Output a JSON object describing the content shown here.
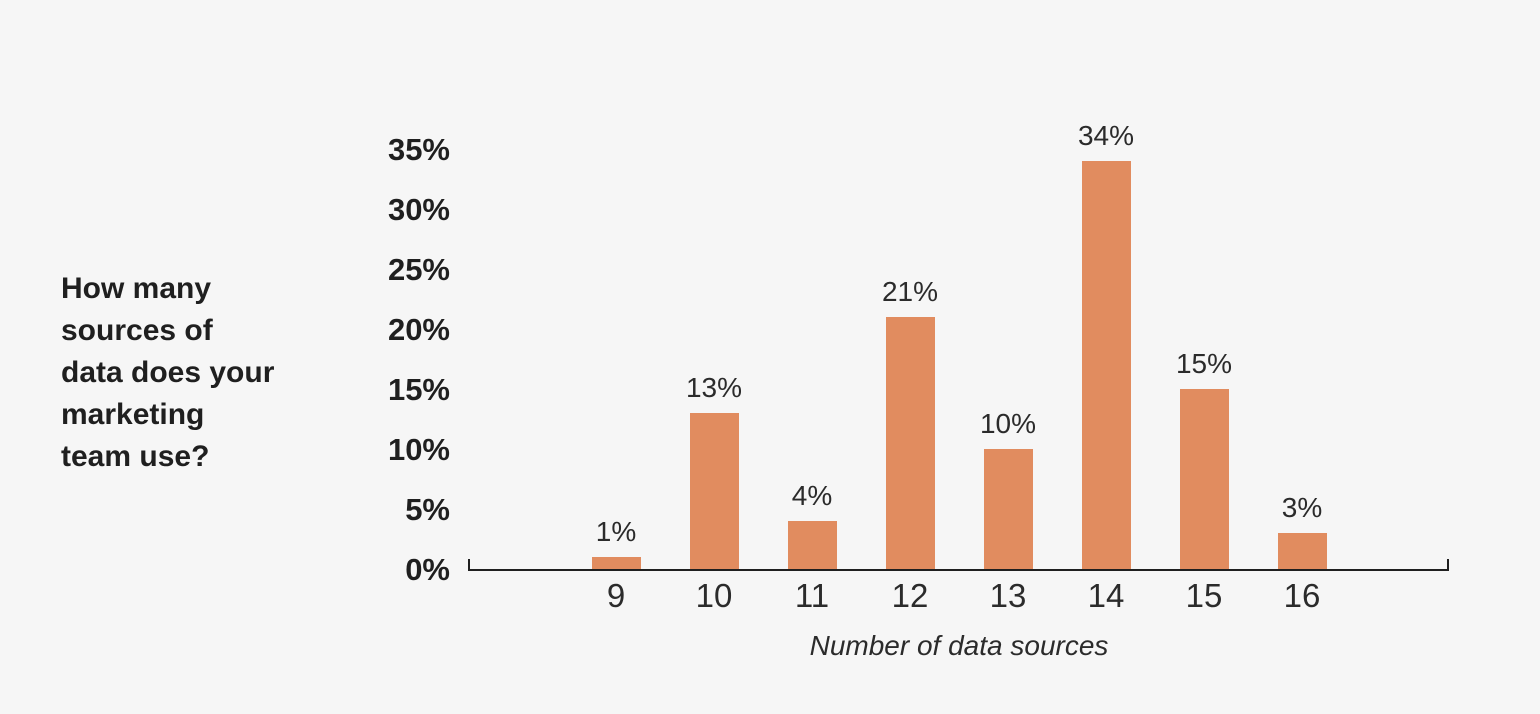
{
  "question": {
    "text": "How many sources of data does your marketing team use?",
    "lines": [
      "How many",
      "sources of",
      "data does your",
      "marketing",
      "team use?"
    ]
  },
  "chart_data": {
    "type": "bar",
    "title": "How many sources of data does your marketing team use?",
    "categories": [
      "9",
      "10",
      "11",
      "12",
      "13",
      "14",
      "15",
      "16"
    ],
    "values": [
      1,
      13,
      4,
      21,
      10,
      34,
      15,
      3
    ],
    "value_labels": [
      "1%",
      "13%",
      "4%",
      "21%",
      "10%",
      "34%",
      "15%",
      "3%"
    ],
    "xlabel": "Number of data sources",
    "ylabel": "",
    "ylim": [
      0,
      35
    ],
    "yticks": [
      0,
      5,
      10,
      15,
      20,
      25,
      30,
      35
    ],
    "ytick_labels": [
      "0%",
      "5%",
      "10%",
      "15%",
      "20%",
      "25%",
      "30%",
      "35%"
    ],
    "grid": false,
    "legend": false,
    "bar_color": "#e18c5f"
  },
  "colors": {
    "background": "#f6f6f6",
    "bar": "#e18c5f",
    "axis": "#1f1f1f",
    "text": "#2b2b2b",
    "title_text": "#1f1f1f"
  }
}
